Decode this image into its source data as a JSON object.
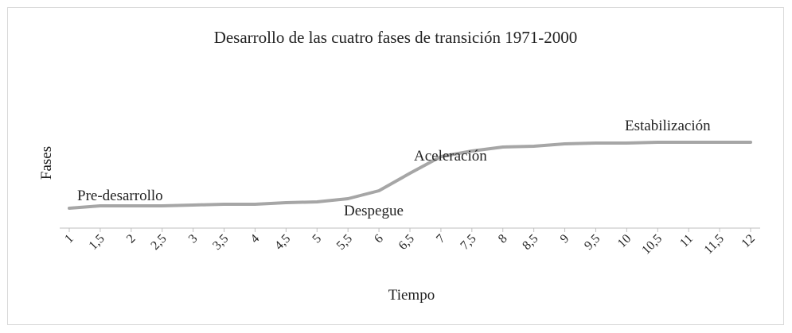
{
  "chart_data": {
    "type": "line",
    "title": "Desarrollo de las cuatro fases de transición 1971-2000",
    "x_label": "Tiempo",
    "y_label": "Fases",
    "categories": [
      "1",
      "1,5",
      "2",
      "2,5",
      "3",
      "3,5",
      "4",
      "4,5",
      "5",
      "5,5",
      "6",
      "6,5",
      "7",
      "7,5",
      "8",
      "8,5",
      "9",
      "9,5",
      "10",
      "10,5",
      "11",
      "11,5",
      "12"
    ],
    "values": [
      2.5,
      2.8,
      2.8,
      2.8,
      2.9,
      3.0,
      3.0,
      3.2,
      3.3,
      3.7,
      4.7,
      6.9,
      9.0,
      9.7,
      10.2,
      10.3,
      10.6,
      10.7,
      10.7,
      10.8,
      10.8,
      10.8,
      10.8
    ],
    "color": "#a6a6a6",
    "ylim": [
      0,
      18
    ],
    "annotations": [
      "Pre-desarrollo",
      "Despegue",
      "Aceleración",
      "Estabilización"
    ],
    "grid": false
  }
}
